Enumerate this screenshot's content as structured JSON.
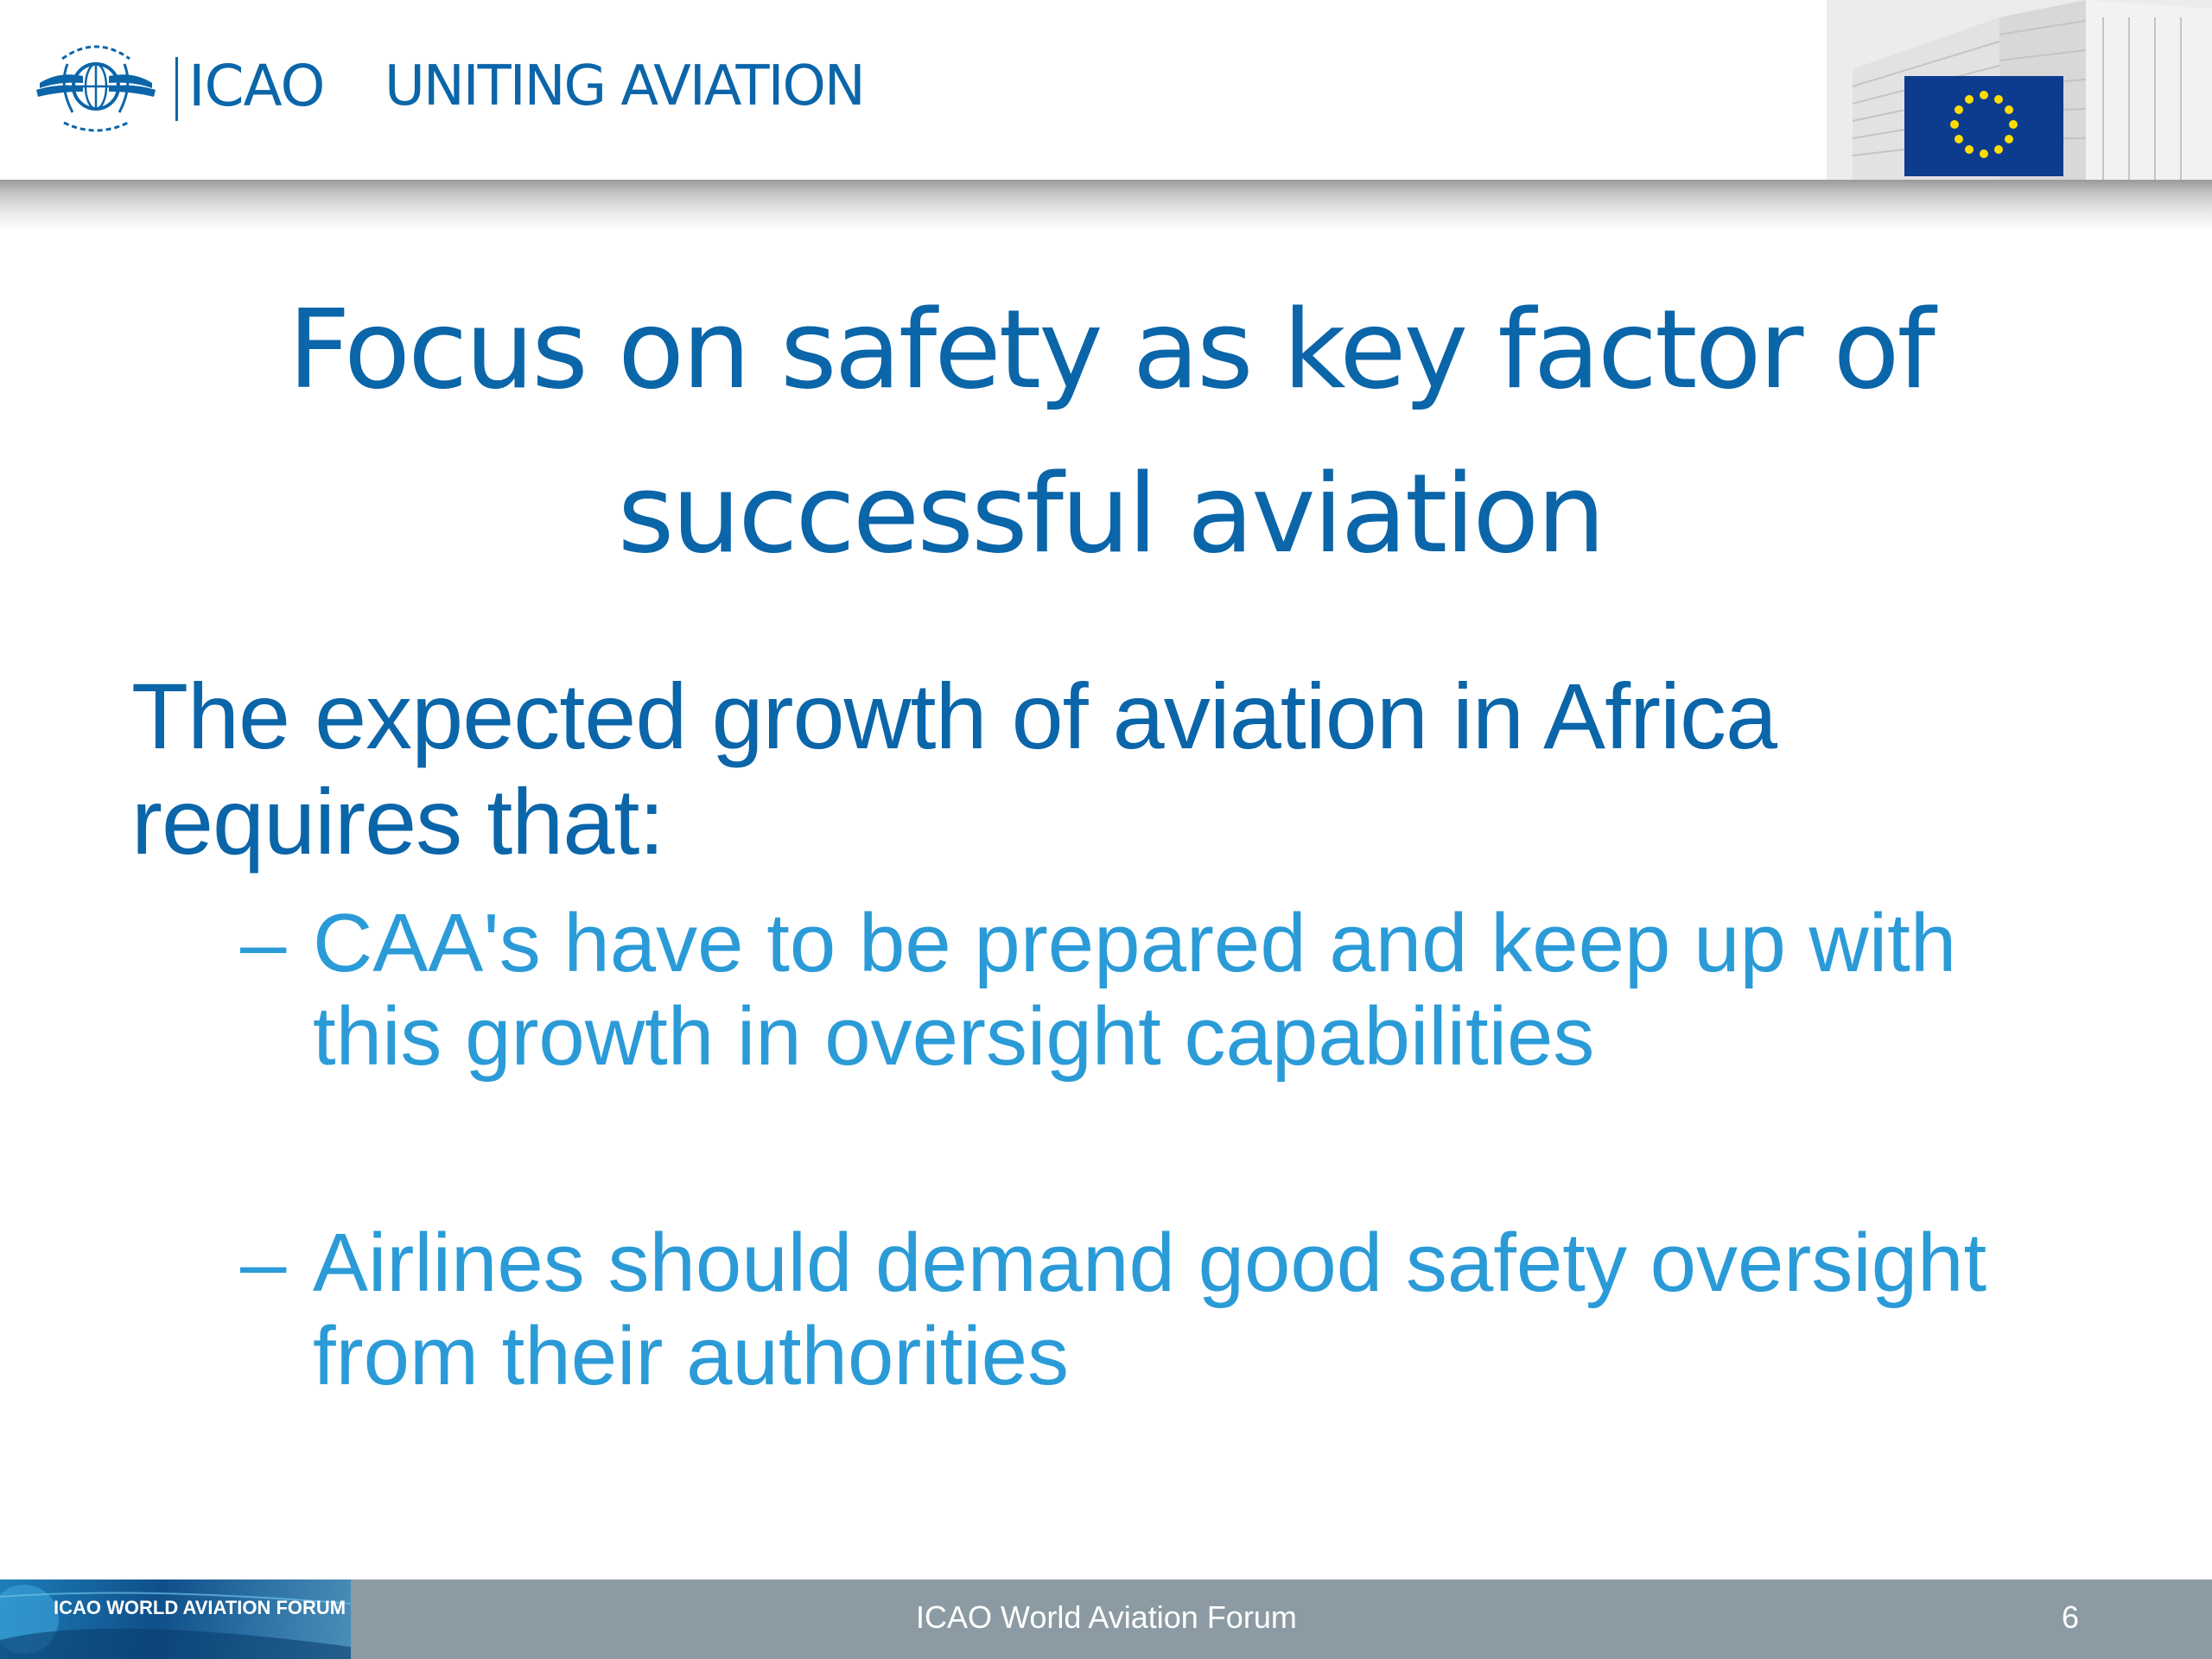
{
  "header": {
    "brand_name": "ICAO",
    "tagline": "UNITING AVIATION"
  },
  "slide": {
    "title_line1": "Focus on safety as key factor of",
    "title_line2": "successful aviation",
    "intro_line1": "The expected growth of aviation in Africa",
    "intro_line2": "requires that:",
    "bullet_marker": "–",
    "bullets": [
      {
        "line1": "CAA's have to be prepared and keep up with",
        "line2": "this growth in oversight capabilities"
      },
      {
        "line1": "Airlines should demand good safety oversight",
        "line2": "from their authorities"
      }
    ]
  },
  "footer": {
    "forum_logo_text": "ICAO WORLD AVIATION FORUM",
    "center_text": "ICAO World Aviation Forum",
    "page_number": "6"
  },
  "colors": {
    "brand_blue": "#0b65a9",
    "bullet_blue": "#2b9bd8",
    "footer_gray": "#8c9ba3",
    "eu_blue": "#0d3c8f",
    "eu_star": "#ffdd00"
  },
  "icons": {
    "icao_emblem": "un-wreath-winged-emblem",
    "eu_flag": "eu-flag-circle-of-stars"
  }
}
